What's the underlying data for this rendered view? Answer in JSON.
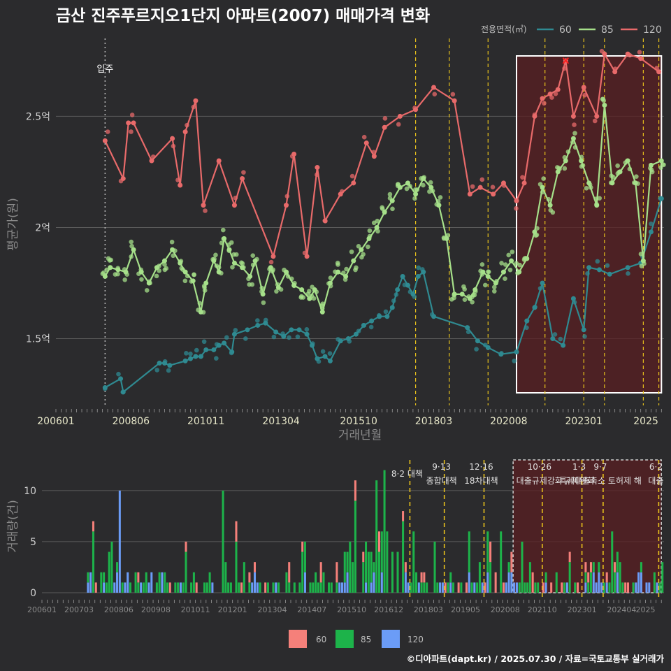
{
  "title": "금산 진주푸르지오1단지 아파트(2007) 매매가격 변화",
  "source": "©디아파트(dapt.kr) / 2025.07.30 / 자료=국토교통부 실거래가",
  "colors": {
    "s60": "#2f8a91",
    "s85": "#a6e08a",
    "s120": "#e86a6a",
    "b60": "#f5807a",
    "b85": "#1db34a",
    "b120": "#6b9cf7",
    "policy": "#e8c21c",
    "highlight": "#5a1f22"
  },
  "legend": {
    "title": "전용면적(㎡)",
    "items": [
      "60",
      "85",
      "120"
    ]
  },
  "chart_data": [
    {
      "type": "line",
      "xlabel": "거래년월",
      "ylabel": "평균가(원)",
      "x_range": [
        "2006-01",
        "2025-08"
      ],
      "ylim": [
        1.2,
        2.85
      ],
      "y_ticks": [
        {
          "v": 1.5,
          "label": "1.5억"
        },
        {
          "v": 2.0,
          "label": "2억"
        },
        {
          "v": 2.5,
          "label": "2.5억"
        }
      ],
      "x_ticks": [
        "200601",
        "200806",
        "201011",
        "201304",
        "201510",
        "201803",
        "202008",
        "202301",
        "2025"
      ],
      "grid": true,
      "annotation": {
        "label": "입주",
        "x": "2007-08"
      },
      "policy_lines": [
        "2017-08",
        "2018-09",
        "2019-12",
        "2021-10",
        "2023-01",
        "2023-09",
        "2024-12",
        "2025-06"
      ],
      "highlight_range": [
        "2020-11",
        "2025-07"
      ],
      "marker_x": {
        "x": "2022-06",
        "y": 2.75
      },
      "series": [
        {
          "name": "60",
          "points": [
            [
              "2007-08",
              1.28
            ],
            [
              "2008-02",
              1.32
            ],
            [
              "2008-03",
              1.26
            ],
            [
              "2009-05",
              1.39
            ],
            [
              "2009-07",
              1.39
            ],
            [
              "2009-09",
              1.38
            ],
            [
              "2010-03",
              1.4
            ],
            [
              "2010-05",
              1.41
            ],
            [
              "2010-07",
              1.42
            ],
            [
              "2010-09",
              1.42
            ],
            [
              "2010-11",
              1.45
            ],
            [
              "2011-02",
              1.45
            ],
            [
              "2011-04",
              1.47
            ],
            [
              "2011-06",
              1.48
            ],
            [
              "2011-09",
              1.44
            ],
            [
              "2011-10",
              1.52
            ],
            [
              "2012-03",
              1.54
            ],
            [
              "2012-07",
              1.56
            ],
            [
              "2012-10",
              1.57
            ],
            [
              "2013-02",
              1.53
            ],
            [
              "2013-05",
              1.51
            ],
            [
              "2013-08",
              1.54
            ],
            [
              "2013-11",
              1.54
            ],
            [
              "2014-02",
              1.52
            ],
            [
              "2014-04",
              1.47
            ],
            [
              "2014-06",
              1.41
            ],
            [
              "2014-09",
              1.42
            ],
            [
              "2014-11",
              1.4
            ],
            [
              "2015-03",
              1.49
            ],
            [
              "2015-06",
              1.5
            ],
            [
              "2015-09",
              1.52
            ],
            [
              "2015-12",
              1.56
            ],
            [
              "2016-03",
              1.58
            ],
            [
              "2016-06",
              1.6
            ],
            [
              "2016-09",
              1.6
            ],
            [
              "2016-11",
              1.64
            ],
            [
              "2017-01",
              1.72
            ],
            [
              "2017-03",
              1.78
            ],
            [
              "2017-05",
              1.74
            ],
            [
              "2017-07",
              1.7
            ],
            [
              "2017-09",
              1.78
            ],
            [
              "2017-11",
              1.8
            ],
            [
              "2018-03",
              1.6
            ],
            [
              "2019-04",
              1.55
            ],
            [
              "2019-08",
              1.49
            ],
            [
              "2019-12",
              1.46
            ],
            [
              "2020-05",
              1.43
            ],
            [
              "2020-11",
              1.44
            ],
            [
              "2021-03",
              1.58
            ],
            [
              "2021-06",
              1.64
            ],
            [
              "2021-09",
              1.75
            ],
            [
              "2022-01",
              1.5
            ],
            [
              "2022-05",
              1.47
            ],
            [
              "2022-09",
              1.68
            ],
            [
              "2023-01",
              1.54
            ],
            [
              "2023-03",
              1.82
            ],
            [
              "2023-07",
              1.81
            ],
            [
              "2023-11",
              1.79
            ],
            [
              "2024-06",
              1.82
            ],
            [
              "2024-11",
              1.84
            ],
            [
              "2025-03",
              1.98
            ],
            [
              "2025-07",
              2.13
            ]
          ]
        },
        {
          "name": "85",
          "points": [
            [
              "2007-08",
              1.78
            ],
            [
              "2007-10",
              1.82
            ],
            [
              "2008-01",
              1.81
            ],
            [
              "2008-04",
              1.8
            ],
            [
              "2008-07",
              1.9
            ],
            [
              "2008-10",
              1.8
            ],
            [
              "2009-01",
              1.75
            ],
            [
              "2009-04",
              1.82
            ],
            [
              "2009-07",
              1.85
            ],
            [
              "2009-10",
              1.9
            ],
            [
              "2010-01",
              1.84
            ],
            [
              "2010-03",
              1.8
            ],
            [
              "2010-06",
              1.76
            ],
            [
              "2010-09",
              1.62
            ],
            [
              "2010-11",
              1.75
            ],
            [
              "2011-02",
              1.85
            ],
            [
              "2011-04",
              1.8
            ],
            [
              "2011-06",
              1.95
            ],
            [
              "2011-08",
              1.9
            ],
            [
              "2011-10",
              1.84
            ],
            [
              "2012-01",
              1.82
            ],
            [
              "2012-04",
              1.78
            ],
            [
              "2012-06",
              1.85
            ],
            [
              "2012-09",
              1.7
            ],
            [
              "2012-12",
              1.82
            ],
            [
              "2013-03",
              1.73
            ],
            [
              "2013-06",
              1.8
            ],
            [
              "2013-09",
              1.74
            ],
            [
              "2013-12",
              1.72
            ],
            [
              "2014-03",
              1.68
            ],
            [
              "2014-05",
              1.72
            ],
            [
              "2014-08",
              1.62
            ],
            [
              "2014-11",
              1.75
            ],
            [
              "2015-02",
              1.8
            ],
            [
              "2015-05",
              1.78
            ],
            [
              "2015-08",
              1.85
            ],
            [
              "2015-11",
              1.9
            ],
            [
              "2016-02",
              1.95
            ],
            [
              "2016-05",
              2.0
            ],
            [
              "2016-08",
              2.07
            ],
            [
              "2016-11",
              2.12
            ],
            [
              "2017-02",
              2.18
            ],
            [
              "2017-05",
              2.2
            ],
            [
              "2017-08",
              2.15
            ],
            [
              "2017-11",
              2.22
            ],
            [
              "2018-02",
              2.18
            ],
            [
              "2018-05",
              2.1
            ],
            [
              "2018-08",
              1.95
            ],
            [
              "2018-11",
              1.7
            ],
            [
              "2019-02",
              1.7
            ],
            [
              "2019-05",
              1.68
            ],
            [
              "2019-07",
              1.72
            ],
            [
              "2019-10",
              1.8
            ],
            [
              "2019-12",
              1.78
            ],
            [
              "2020-03",
              1.75
            ],
            [
              "2020-06",
              1.8
            ],
            [
              "2020-09",
              1.85
            ],
            [
              "2020-12",
              1.8
            ],
            [
              "2021-03",
              1.86
            ],
            [
              "2021-06",
              1.98
            ],
            [
              "2021-09",
              2.18
            ],
            [
              "2021-12",
              2.1
            ],
            [
              "2022-03",
              2.25
            ],
            [
              "2022-06",
              2.3
            ],
            [
              "2022-09",
              2.4
            ],
            [
              "2022-12",
              2.3
            ],
            [
              "2023-03",
              2.2
            ],
            [
              "2023-06",
              2.1
            ],
            [
              "2023-09",
              2.55
            ],
            [
              "2023-12",
              2.2
            ],
            [
              "2024-03",
              2.25
            ],
            [
              "2024-06",
              2.3
            ],
            [
              "2024-09",
              2.2
            ],
            [
              "2024-12",
              1.85
            ],
            [
              "2025-03",
              2.28
            ],
            [
              "2025-07",
              2.3
            ]
          ]
        },
        {
          "name": "120",
          "points": [
            [
              "2007-08",
              2.39
            ],
            [
              "2008-03",
              2.22
            ],
            [
              "2008-05",
              2.47
            ],
            [
              "2008-07",
              2.47
            ],
            [
              "2009-02",
              2.3
            ],
            [
              "2009-10",
              2.4
            ],
            [
              "2010-01",
              2.19
            ],
            [
              "2010-03",
              2.43
            ],
            [
              "2010-07",
              2.57
            ],
            [
              "2010-10",
              2.1
            ],
            [
              "2011-04",
              2.3
            ],
            [
              "2011-10",
              2.1
            ],
            [
              "2012-01",
              2.22
            ],
            [
              "2013-01",
              1.87
            ],
            [
              "2013-06",
              2.1
            ],
            [
              "2013-09",
              2.33
            ],
            [
              "2014-02",
              1.87
            ],
            [
              "2014-06",
              2.27
            ],
            [
              "2014-09",
              2.03
            ],
            [
              "2015-03",
              2.15
            ],
            [
              "2015-08",
              2.2
            ],
            [
              "2016-01",
              2.38
            ],
            [
              "2016-04",
              2.32
            ],
            [
              "2016-08",
              2.45
            ],
            [
              "2017-02",
              2.5
            ],
            [
              "2017-08",
              2.53
            ],
            [
              "2018-03",
              2.63
            ],
            [
              "2018-11",
              2.57
            ],
            [
              "2019-05",
              2.15
            ],
            [
              "2019-09",
              2.18
            ],
            [
              "2020-02",
              2.15
            ],
            [
              "2020-06",
              2.2
            ],
            [
              "2020-11",
              2.12
            ],
            [
              "2021-02",
              2.2
            ],
            [
              "2021-06",
              2.5
            ],
            [
              "2021-09",
              2.58
            ],
            [
              "2021-12",
              2.6
            ],
            [
              "2022-03",
              2.62
            ],
            [
              "2022-06",
              2.75
            ],
            [
              "2022-09",
              2.5
            ],
            [
              "2023-01",
              2.63
            ],
            [
              "2023-06",
              2.5
            ],
            [
              "2023-09",
              2.78
            ],
            [
              "2024-01",
              2.7
            ],
            [
              "2024-06",
              2.78
            ],
            [
              "2024-11",
              2.76
            ],
            [
              "2025-06",
              2.7
            ]
          ]
        }
      ]
    },
    {
      "type": "bar",
      "ylabel": "거래량(건)",
      "stacked": true,
      "ylim": [
        0,
        13
      ],
      "y_ticks": [
        0,
        5,
        10
      ],
      "x_ticks": [
        "200601",
        "200703",
        "200806",
        "200908",
        "201011",
        "201201",
        "201304",
        "201407",
        "201510",
        "201612",
        "201803",
        "201905",
        "202008",
        "202110",
        "202301",
        "202404",
        "2025"
      ],
      "policy_labels": [
        {
          "x": "2017-08",
          "line1": "",
          "line2": "8·2 대책"
        },
        {
          "x": "2018-09",
          "line1": "9·13",
          "line2": "종합대책"
        },
        {
          "x": "2019-12",
          "line1": "12·16",
          "line2": "18차대책"
        },
        {
          "x": "2021-10",
          "line1": "10·26",
          "line2": "대출규제강화"
        },
        {
          "x": "2023-01",
          "line1": "1·3",
          "line2": "규제완화"
        },
        {
          "x": "2023-09",
          "line1": "9·7",
          "line2": "특례대출축소 토허제 해"
        },
        {
          "x": "2025-06",
          "line1": "6·2",
          "line2": "대출"
        }
      ],
      "highlight_range": [
        "2020-11",
        "2025-07"
      ],
      "legend_items": [
        "60",
        "85",
        "120"
      ],
      "spikes": [
        [
          "2007-08",
          7
        ],
        [
          "2008-06",
          10
        ],
        [
          "2011-09",
          10
        ],
        [
          "2016-12",
          13
        ],
        [
          "2016-10",
          12
        ],
        [
          "2016-07",
          11
        ],
        [
          "2015-11",
          11
        ]
      ]
    }
  ]
}
